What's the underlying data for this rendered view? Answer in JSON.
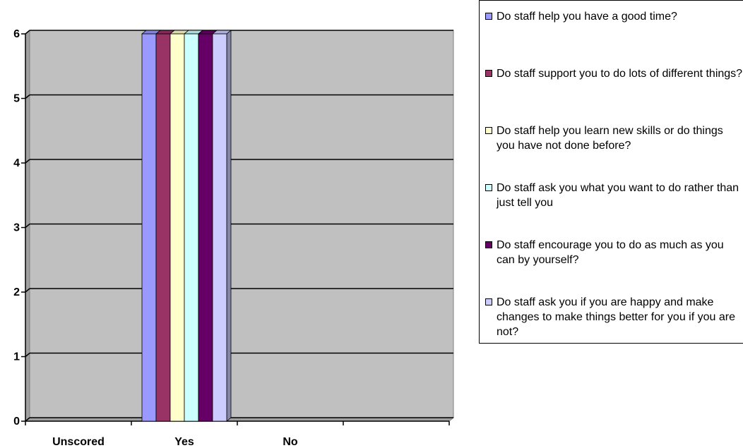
{
  "chart_data": {
    "type": "bar",
    "categories": [
      "Unscored",
      "Yes",
      "No",
      null
    ],
    "series": [
      {
        "name": "Do staff help you have a good time?",
        "color": "#9999ff",
        "values": [
          0,
          6,
          0,
          0
        ]
      },
      {
        "name": "Do staff support you to do lots of different things?",
        "color": "#993366",
        "values": [
          0,
          6,
          0,
          0
        ]
      },
      {
        "name": "Do staff help you learn new skills or do things you have not done before?",
        "color": "#ffffcc",
        "values": [
          0,
          6,
          0,
          0
        ]
      },
      {
        "name": "Do staff ask you what you want to do rather than just tell you",
        "color": "#ccffff",
        "values": [
          0,
          6,
          0,
          0
        ]
      },
      {
        "name": "Do staff encourage you to do as much as you can by yourself?",
        "color": "#660066",
        "values": [
          0,
          6,
          0,
          0
        ]
      },
      {
        "name": "Do staff ask you if you are happy and make changes to make things better for you if you are not?",
        "color": "#ccccff",
        "values": [
          0,
          6,
          0,
          0
        ]
      }
    ],
    "ylim": [
      0,
      6
    ],
    "yticks": [
      0,
      1,
      2,
      3,
      4,
      5,
      6
    ],
    "grid": true,
    "legend": "right"
  }
}
